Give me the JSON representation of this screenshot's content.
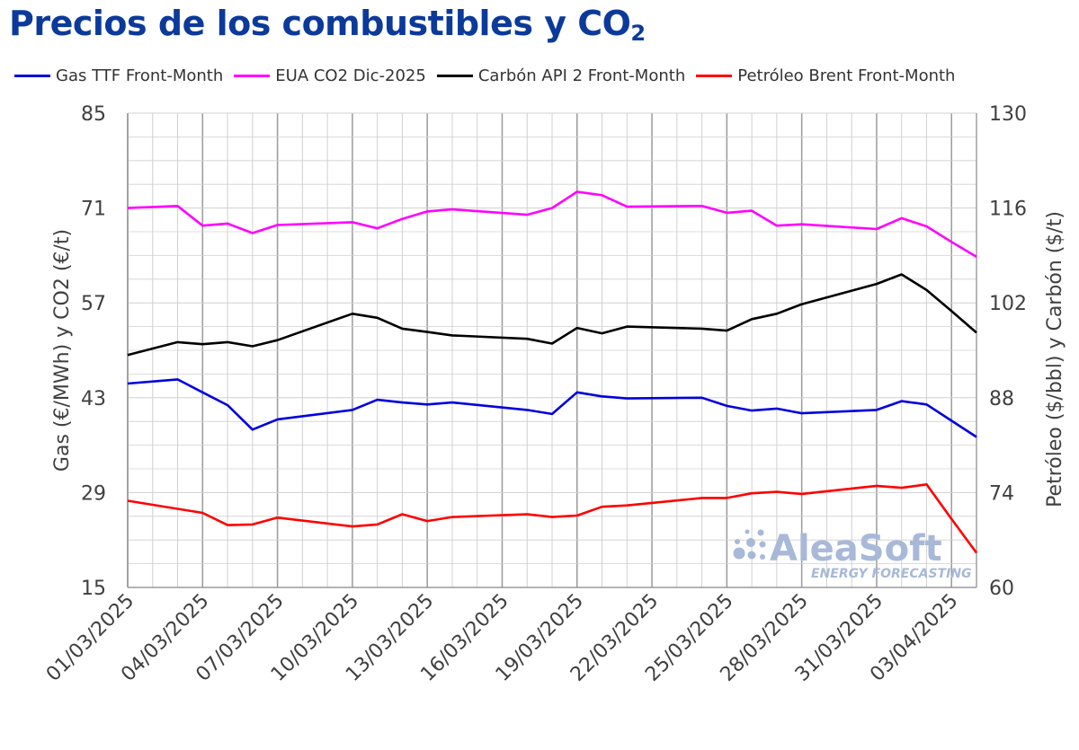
{
  "title": {
    "main": "Precios de los combustibles y CO",
    "sub": "2"
  },
  "chart_data": {
    "type": "line",
    "x": [
      "01/03/2025",
      "03/03/2025",
      "04/03/2025",
      "05/03/2025",
      "06/03/2025",
      "07/03/2025",
      "10/03/2025",
      "11/03/2025",
      "12/03/2025",
      "13/03/2025",
      "14/03/2025",
      "17/03/2025",
      "18/03/2025",
      "19/03/2025",
      "20/03/2025",
      "21/03/2025",
      "24/03/2025",
      "25/03/2025",
      "26/03/2025",
      "27/03/2025",
      "28/03/2025",
      "31/03/2025",
      "01/04/2025",
      "02/04/2025",
      "03/04/2025",
      "04/04/2025"
    ],
    "x_ticks": [
      "01/03/2025",
      "04/03/2025",
      "07/03/2025",
      "10/03/2025",
      "13/03/2025",
      "16/03/2025",
      "19/03/2025",
      "22/03/2025",
      "25/03/2025",
      "28/03/2025",
      "31/03/2025",
      "03/04/2025"
    ],
    "xlim": [
      "01/03/2025",
      "04/04/2025"
    ],
    "y_left": {
      "label": "Gas (€/MWh) y CO2 (€/t)",
      "lim": [
        15,
        85
      ],
      "ticks": [
        15,
        29,
        43,
        57,
        71,
        85
      ]
    },
    "y_right": {
      "label": "Petróleo ($/bbl) y Carbón ($/t)",
      "lim": [
        60,
        130
      ],
      "ticks": [
        60,
        74,
        88,
        102,
        116,
        130
      ]
    },
    "grid": true,
    "legend_position": "top",
    "series": [
      {
        "name": "Gas TTF Front-Month",
        "color": "#0000e0",
        "axis": "left",
        "values": [
          45.1,
          45.7,
          43.8,
          41.9,
          38.3,
          39.8,
          41.2,
          42.7,
          42.3,
          42.0,
          42.3,
          41.2,
          40.6,
          43.8,
          43.2,
          42.9,
          43.0,
          41.8,
          41.1,
          41.4,
          40.7,
          41.2,
          42.5,
          42.0,
          39.6,
          37.2
        ]
      },
      {
        "name": "EUA CO2 Dic-2025",
        "color": "#ff00ff",
        "axis": "left",
        "values": [
          71.0,
          71.3,
          68.4,
          68.7,
          67.3,
          68.5,
          68.9,
          68.0,
          69.4,
          70.5,
          70.8,
          70.0,
          71.0,
          73.4,
          72.9,
          71.2,
          71.3,
          70.3,
          70.6,
          68.4,
          68.6,
          67.9,
          69.5,
          68.3,
          66.0,
          63.8
        ]
      },
      {
        "name": "Carbón API 2 Front-Month",
        "color": "#000000",
        "axis": "right",
        "values": [
          94.3,
          96.2,
          95.9,
          96.2,
          95.6,
          96.5,
          100.4,
          99.8,
          98.2,
          97.7,
          97.2,
          96.7,
          96.0,
          98.3,
          97.5,
          98.5,
          98.2,
          97.9,
          99.6,
          100.4,
          101.8,
          104.8,
          106.2,
          103.9,
          100.8,
          97.6
        ]
      },
      {
        "name": "Petróleo Brent Front-Month",
        "color": "#ff0000",
        "axis": "right",
        "values": [
          72.8,
          71.6,
          71.0,
          69.2,
          69.3,
          70.3,
          69.0,
          69.3,
          70.8,
          69.8,
          70.4,
          70.8,
          70.4,
          70.6,
          71.9,
          72.1,
          73.2,
          73.2,
          73.9,
          74.1,
          73.8,
          75.0,
          74.7,
          75.2,
          70.1,
          65.1
        ]
      }
    ]
  },
  "watermark": {
    "brand": "AleaSoft",
    "tagline": "ENERGY FORECASTING"
  },
  "colors": {
    "title": "#0b3a9b",
    "grid": "#d0d0d0",
    "grid_major": "#9a9a9a",
    "watermark": "#a8b8d8"
  }
}
